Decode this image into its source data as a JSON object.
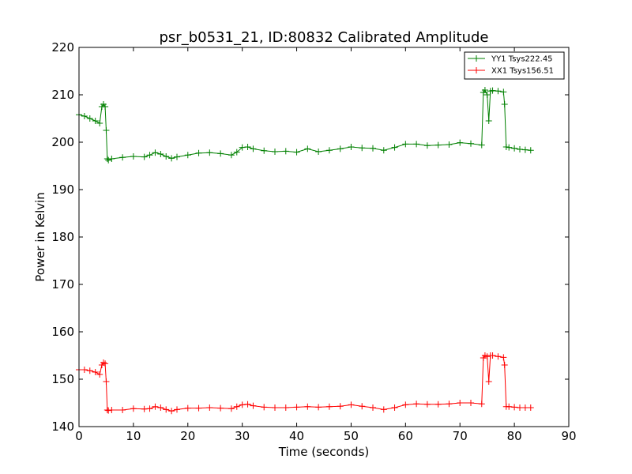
{
  "chart_data": {
    "type": "line",
    "title": "psr_b0531_21, ID:80832 Calibrated Amplitude",
    "xlabel": "Time (seconds)",
    "ylabel": "Power in Kelvin",
    "xlim": [
      0,
      90
    ],
    "ylim": [
      140,
      220
    ],
    "xticks": [
      0,
      10,
      20,
      30,
      40,
      50,
      60,
      70,
      80,
      90
    ],
    "yticks": [
      140,
      150,
      160,
      170,
      180,
      190,
      200,
      210,
      220
    ],
    "grid": false,
    "legend_position": "top-right",
    "series": [
      {
        "name": "YY1 Tsys222.45",
        "color": "#008000",
        "marker": "+",
        "x": [
          0,
          1,
          2,
          3,
          3.8,
          4.2,
          4.5,
          4.8,
          5.0,
          5.2,
          5.4,
          6,
          8,
          10,
          12,
          13,
          14,
          15,
          16,
          17,
          18,
          20,
          22,
          24,
          26,
          28,
          29,
          30,
          31,
          32,
          34,
          36,
          38,
          40,
          42,
          44,
          46,
          48,
          50,
          52,
          54,
          56,
          58,
          60,
          62,
          64,
          66,
          68,
          70,
          72,
          74,
          74.3,
          74.6,
          75,
          75.3,
          75.6,
          76,
          77,
          78,
          78.2,
          78.5,
          79,
          80,
          81,
          82,
          83
        ],
        "y": [
          205.8,
          205.5,
          205.0,
          204.5,
          204.0,
          207.5,
          208.0,
          207.5,
          202.5,
          196.5,
          196.2,
          196.5,
          196.8,
          197.0,
          196.9,
          197.3,
          197.8,
          197.5,
          197.0,
          196.6,
          196.9,
          197.3,
          197.7,
          197.8,
          197.6,
          197.3,
          197.9,
          198.9,
          199.0,
          198.6,
          198.2,
          198.0,
          198.1,
          197.9,
          198.6,
          198.0,
          198.3,
          198.6,
          199.0,
          198.8,
          198.7,
          198.3,
          198.9,
          199.6,
          199.6,
          199.3,
          199.4,
          199.5,
          199.9,
          199.7,
          199.4,
          210.5,
          211.0,
          210.0,
          204.5,
          210.8,
          210.9,
          210.8,
          210.6,
          208.0,
          199.0,
          198.9,
          198.7,
          198.5,
          198.4,
          198.3
        ]
      },
      {
        "name": "XX1 Tsys156.51",
        "color": "#ff0000",
        "marker": "+",
        "x": [
          0,
          1,
          2,
          3,
          3.8,
          4.2,
          4.5,
          4.8,
          5.0,
          5.2,
          5.4,
          6,
          8,
          10,
          12,
          13,
          14,
          15,
          16,
          17,
          18,
          20,
          22,
          24,
          26,
          28,
          29,
          30,
          31,
          32,
          34,
          36,
          38,
          40,
          42,
          44,
          46,
          48,
          50,
          52,
          54,
          56,
          58,
          60,
          62,
          64,
          66,
          68,
          70,
          72,
          74,
          74.3,
          74.6,
          75,
          75.3,
          75.6,
          76,
          77,
          78,
          78.2,
          78.5,
          79,
          80,
          81,
          82,
          83
        ],
        "y": [
          152.0,
          152.0,
          151.8,
          151.5,
          151.0,
          153.0,
          153.5,
          153.3,
          149.5,
          143.5,
          143.4,
          143.5,
          143.5,
          143.8,
          143.7,
          143.8,
          144.2,
          144.0,
          143.6,
          143.3,
          143.6,
          143.9,
          143.9,
          144.0,
          143.9,
          143.8,
          144.2,
          144.6,
          144.7,
          144.4,
          144.1,
          144.0,
          144.0,
          144.1,
          144.2,
          144.1,
          144.2,
          144.3,
          144.6,
          144.3,
          144.0,
          143.6,
          144.0,
          144.6,
          144.8,
          144.7,
          144.7,
          144.8,
          145.0,
          145.0,
          144.8,
          154.5,
          155.0,
          154.8,
          149.5,
          155.0,
          155.0,
          154.8,
          154.6,
          153.0,
          144.2,
          144.2,
          144.1,
          144.0,
          144.0,
          144.0
        ]
      }
    ]
  }
}
